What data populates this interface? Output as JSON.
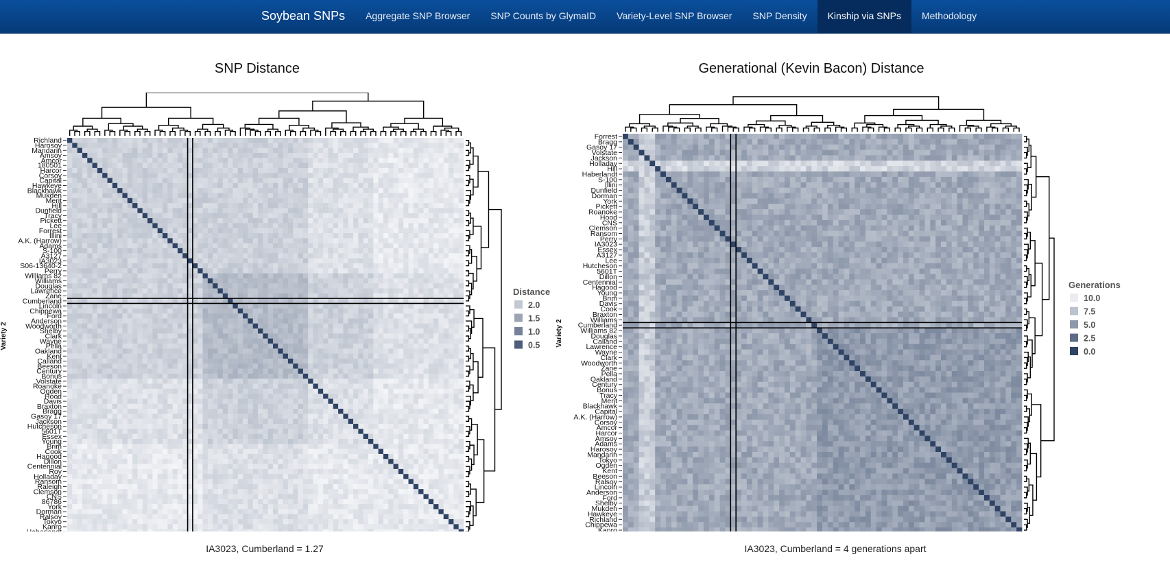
{
  "nav": {
    "brand": "Soybean SNPs",
    "items": [
      {
        "label": "Aggregate SNP Browser",
        "active": false
      },
      {
        "label": "SNP Counts by GlymaID",
        "active": false
      },
      {
        "label": "Variety-Level SNP Browser",
        "active": false
      },
      {
        "label": "SNP Density",
        "active": false
      },
      {
        "label": "Kinship via SNPs",
        "active": true
      },
      {
        "label": "Methodology",
        "active": false
      }
    ]
  },
  "colors": {
    "nav_bg": "#063a78",
    "heat_low": "#f4f5f8",
    "heat_high": "#2f4364"
  },
  "snp_panel": {
    "title": "SNP Distance",
    "caption": "IA3023, Cumberland = 1.27",
    "ylabel": "Variety 2",
    "legend": {
      "title": "Distance",
      "entries": [
        "2.0",
        "1.5",
        "1.0",
        "0.5"
      ]
    },
    "row_labels": [
      "Richland",
      "Harosoy",
      "Mandarin",
      "Amsoy",
      "Amcor",
      "180501",
      "Harcor",
      "Corsoy",
      "Capital",
      "Hawkeye",
      "Blackhawk",
      "Mukden",
      "Merit",
      "Hill",
      "Dunfield",
      "Tracy",
      "Pickett",
      "Lee",
      "Forrest",
      "Illini",
      "A.K. (Harrow)",
      "Adams",
      "S-100",
      "A3127",
      "IA3023",
      "S06-13640-2",
      "Perry",
      "Williams 82",
      "Williams",
      "Douglas",
      "Lawrence",
      "Zane",
      "Cumberland",
      "Lincoln",
      "Chippewa",
      "Ford",
      "Anderson",
      "Woodworth",
      "Shelby",
      "Clark",
      "Wayne",
      "Pella",
      "Oakland",
      "Kent",
      "Calland",
      "Beeson",
      "Century",
      "Bonus",
      "Volstate",
      "Roanoke",
      "Ogden",
      "Hood",
      "Davis",
      "Braxton",
      "Bragg",
      "Gasoy 17",
      "Jackson",
      "Hutcheson",
      "5601T",
      "Essex",
      "Young",
      "Brim",
      "Cook",
      "Hagood",
      "Dillon",
      "Centennial",
      "Roy",
      "Holladay",
      "Ransom",
      "Raleigh",
      "Clemson",
      "CNS",
      "86786",
      "York",
      "Dorman",
      "Ralsoy",
      "Tokyo",
      "Kanro",
      "Haberlandt"
    ],
    "highlight": {
      "col": "IA3023",
      "row": "Cumberland"
    }
  },
  "gen_panel": {
    "title": "Generational (Kevin Bacon) Distance",
    "caption": "IA3023, Cumberland = 4 generations apart",
    "ylabel": "Variety 2",
    "legend": {
      "title": "Generations",
      "entries": [
        "10.0",
        "7.5",
        "5.0",
        "2.5",
        "0.0"
      ]
    },
    "row_labels": [
      "Forrest",
      "Bragg",
      "Gasoy 17",
      "Volstate",
      "Jackson",
      "Holladay",
      "Hill",
      "Haberlandt",
      "S-100",
      "Illini",
      "Dunfield",
      "Dorman",
      "York",
      "Pickett",
      "Roanoke",
      "Hood",
      "CNS",
      "Clemson",
      "Ransom",
      "Perry",
      "IA3023",
      "Essex",
      "A3127",
      "Lee",
      "Hutcheson",
      "5601T",
      "Dillon",
      "Centennial",
      "Hagood",
      "Young",
      "Brim",
      "Davis",
      "Cook",
      "Braxton",
      "Williams",
      "Cumberland",
      "Williams 82",
      "Douglas",
      "Calland",
      "Lawrence",
      "Wayne",
      "Clark",
      "Woodworth",
      "Zane",
      "Pella",
      "Oakland",
      "Century",
      "Bonus",
      "Tracy",
      "Merit",
      "Blackhawk",
      "Capital",
      "A.K. (Harrow)",
      "Corsoy",
      "Amcor",
      "Harcor",
      "Amsoy",
      "Adams",
      "Harosoy",
      "Mandarin",
      "Tokyo",
      "Ogden",
      "Kent",
      "Beeson",
      "Ralsoy",
      "Lincoln",
      "Anderson",
      "Ford",
      "Shelby",
      "Mukden",
      "Hawkeye",
      "Richland",
      "Chippewa",
      "Kanro"
    ],
    "highlight": {
      "col": "IA3023",
      "row": "Cumberland"
    }
  }
}
